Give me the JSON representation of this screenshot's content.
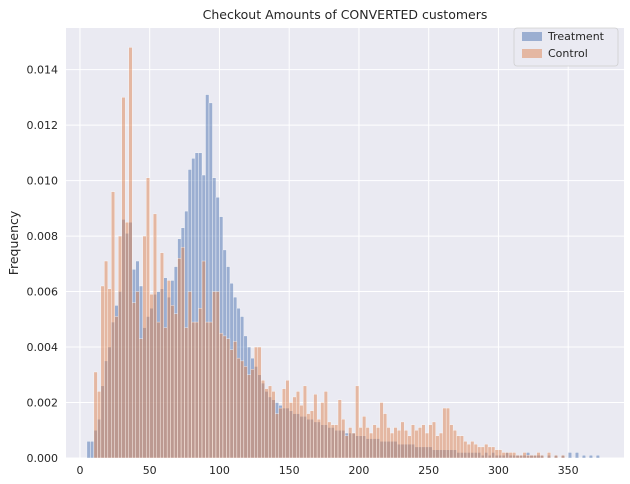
{
  "chart_data": {
    "type": "histogram",
    "title": "Checkout Amounts of CONVERTED customers",
    "xlabel": "",
    "ylabel": "Frequency",
    "xlim": [
      -10,
      390
    ],
    "ylim": [
      0,
      0.0155
    ],
    "xticks": [
      0,
      50,
      100,
      150,
      200,
      250,
      300,
      350
    ],
    "yticks": [
      0.0,
      0.002,
      0.004,
      0.006,
      0.008,
      0.01,
      0.012,
      0.014
    ],
    "ytick_labels": [
      "0.000",
      "0.002",
      "0.004",
      "0.006",
      "0.008",
      "0.010",
      "0.012",
      "0.014"
    ],
    "grid": true,
    "legend_position": "top-right",
    "bin_width": 2.5,
    "series": [
      {
        "name": "Treatment",
        "color": "#4c72b0",
        "bins": [
          [
            5,
            0.0006
          ],
          [
            7.5,
            0.0006
          ],
          [
            10,
            0.001
          ],
          [
            12.5,
            0.0014
          ],
          [
            15,
            0.0026
          ],
          [
            17.5,
            0.0035
          ],
          [
            20,
            0.004
          ],
          [
            22.5,
            0.0049
          ],
          [
            25,
            0.0055
          ],
          [
            27.5,
            0.006
          ],
          [
            30,
            0.0086
          ],
          [
            32.5,
            0.0081
          ],
          [
            35,
            0.0085
          ],
          [
            37.5,
            0.0068
          ],
          [
            40,
            0.0071
          ],
          [
            42.5,
            0.0062
          ],
          [
            45,
            0.0047
          ],
          [
            47.5,
            0.0051
          ],
          [
            50,
            0.0054
          ],
          [
            52.5,
            0.0059
          ],
          [
            55,
            0.006
          ],
          [
            57.5,
            0.0061
          ],
          [
            60,
            0.0065
          ],
          [
            62.5,
            0.0058
          ],
          [
            65,
            0.0064
          ],
          [
            67.5,
            0.0069
          ],
          [
            70,
            0.0079
          ],
          [
            72.5,
            0.0083
          ],
          [
            75,
            0.0089
          ],
          [
            77.5,
            0.0104
          ],
          [
            80,
            0.0108
          ],
          [
            82.5,
            0.011
          ],
          [
            85,
            0.011
          ],
          [
            87.5,
            0.0102
          ],
          [
            90,
            0.0131
          ],
          [
            92.5,
            0.0128
          ],
          [
            95,
            0.0101
          ],
          [
            97.5,
            0.0094
          ],
          [
            100,
            0.0087
          ],
          [
            102.5,
            0.0075
          ],
          [
            105,
            0.0069
          ],
          [
            107.5,
            0.0063
          ],
          [
            110,
            0.0058
          ],
          [
            112.5,
            0.0054
          ],
          [
            115,
            0.0051
          ],
          [
            117.5,
            0.0044
          ],
          [
            120,
            0.004
          ],
          [
            122.5,
            0.0036
          ],
          [
            125,
            0.0033
          ],
          [
            127.5,
            0.003
          ],
          [
            130,
            0.0027
          ],
          [
            132.5,
            0.0024
          ],
          [
            135,
            0.0022
          ],
          [
            137.5,
            0.0021
          ],
          [
            140,
            0.002
          ],
          [
            142.5,
            0.0019
          ],
          [
            145,
            0.0018
          ],
          [
            147.5,
            0.0018
          ],
          [
            150,
            0.0017
          ],
          [
            152.5,
            0.0016
          ],
          [
            155,
            0.0016
          ],
          [
            157.5,
            0.0015
          ],
          [
            160,
            0.0015
          ],
          [
            162.5,
            0.0014
          ],
          [
            165,
            0.0014
          ],
          [
            167.5,
            0.0013
          ],
          [
            170,
            0.0013
          ],
          [
            172.5,
            0.0012
          ],
          [
            175,
            0.0012
          ],
          [
            177.5,
            0.0011
          ],
          [
            180,
            0.0011
          ],
          [
            182.5,
            0.001
          ],
          [
            185,
            0.001
          ],
          [
            187.5,
            0.001
          ],
          [
            190,
            0.0009
          ],
          [
            192.5,
            0.0009
          ],
          [
            195,
            0.0009
          ],
          [
            197.5,
            0.0008
          ],
          [
            200,
            0.0008
          ],
          [
            202.5,
            0.0008
          ],
          [
            205,
            0.0007
          ],
          [
            207.5,
            0.0007
          ],
          [
            210,
            0.0007
          ],
          [
            212.5,
            0.0007
          ],
          [
            215,
            0.0006
          ],
          [
            217.5,
            0.0006
          ],
          [
            220,
            0.0006
          ],
          [
            222.5,
            0.0006
          ],
          [
            225,
            0.0006
          ],
          [
            227.5,
            0.0005
          ],
          [
            230,
            0.0005
          ],
          [
            232.5,
            0.0005
          ],
          [
            235,
            0.0005
          ],
          [
            237.5,
            0.0005
          ],
          [
            240,
            0.0004
          ],
          [
            242.5,
            0.0004
          ],
          [
            245,
            0.0004
          ],
          [
            247.5,
            0.0004
          ],
          [
            250,
            0.0004
          ],
          [
            252.5,
            0.0003
          ],
          [
            255,
            0.0003
          ],
          [
            257.5,
            0.0003
          ],
          [
            260,
            0.0003
          ],
          [
            262.5,
            0.0003
          ],
          [
            265,
            0.0003
          ],
          [
            267.5,
            0.0003
          ],
          [
            270,
            0.0002
          ],
          [
            272.5,
            0.0002
          ],
          [
            275,
            0.0002
          ],
          [
            277.5,
            0.0002
          ],
          [
            280,
            0.0002
          ],
          [
            282.5,
            0.0002
          ],
          [
            285,
            0.0002
          ],
          [
            287.5,
            0.0001
          ],
          [
            290,
            0.0002
          ],
          [
            292.5,
            0.0001
          ],
          [
            295,
            0.0002
          ],
          [
            297.5,
            0.0001
          ],
          [
            300,
            0.0001
          ],
          [
            302.5,
            0.0001
          ],
          [
            305,
            0.0002
          ],
          [
            307.5,
            0.0001
          ],
          [
            310,
            0.0001
          ],
          [
            312.5,
            0.0001
          ],
          [
            315,
            0.0001
          ],
          [
            317.5,
            0.0001
          ],
          [
            320,
            0.0002
          ],
          [
            322.5,
            0.0001
          ],
          [
            325,
            0.0001
          ],
          [
            327.5,
            0.0001
          ],
          [
            330,
            0.0001
          ],
          [
            335,
            0.0001
          ],
          [
            340,
            0.0001
          ],
          [
            345,
            0.0001
          ],
          [
            350,
            0.0002
          ],
          [
            355,
            0.0002
          ],
          [
            360,
            0.0001
          ],
          [
            365,
            0.0001
          ],
          [
            370,
            0.0001
          ]
        ]
      },
      {
        "name": "Control",
        "color": "#dd8452",
        "bins": [
          [
            10,
            0.0031
          ],
          [
            12.5,
            0.0024
          ],
          [
            15,
            0.0062
          ],
          [
            17.5,
            0.0071
          ],
          [
            20,
            0.0061
          ],
          [
            22.5,
            0.0096
          ],
          [
            25,
            0.0051
          ],
          [
            27.5,
            0.008
          ],
          [
            30,
            0.013
          ],
          [
            32.5,
            0.0085
          ],
          [
            35,
            0.0148
          ],
          [
            37.5,
            0.0056
          ],
          [
            40,
            0.006
          ],
          [
            42.5,
            0.0043
          ],
          [
            45,
            0.008
          ],
          [
            47.5,
            0.0101
          ],
          [
            50,
            0.0059
          ],
          [
            52.5,
            0.0088
          ],
          [
            55,
            0.0049
          ],
          [
            57.5,
            0.0074
          ],
          [
            60,
            0.0047
          ],
          [
            62.5,
            0.0064
          ],
          [
            65,
            0.0055
          ],
          [
            67.5,
            0.0052
          ],
          [
            70,
            0.0072
          ],
          [
            72.5,
            0.0076
          ],
          [
            75,
            0.0047
          ],
          [
            77.5,
            0.006
          ],
          [
            80,
            0.0049
          ],
          [
            82.5,
            0.0049
          ],
          [
            85,
            0.0054
          ],
          [
            87.5,
            0.0071
          ],
          [
            90,
            0.0049
          ],
          [
            92.5,
            0.0049
          ],
          [
            95,
            0.006
          ],
          [
            97.5,
            0.006
          ],
          [
            100,
            0.0045
          ],
          [
            102.5,
            0.0044
          ],
          [
            105,
            0.0043
          ],
          [
            107.5,
            0.0039
          ],
          [
            110,
            0.0042
          ],
          [
            112.5,
            0.0036
          ],
          [
            115,
            0.0035
          ],
          [
            117.5,
            0.0033
          ],
          [
            120,
            0.003
          ],
          [
            122.5,
            0.0032
          ],
          [
            125,
            0.004
          ],
          [
            127.5,
            0.004
          ],
          [
            130,
            0.0028
          ],
          [
            132.5,
            0.0025
          ],
          [
            135,
            0.0026
          ],
          [
            137.5,
            0.0024
          ],
          [
            140,
            0.0016
          ],
          [
            142.5,
            0.0018
          ],
          [
            145,
            0.0025
          ],
          [
            147.5,
            0.0028
          ],
          [
            150,
            0.002
          ],
          [
            152.5,
            0.0022
          ],
          [
            155,
            0.0024
          ],
          [
            157.5,
            0.0019
          ],
          [
            160,
            0.0026
          ],
          [
            162.5,
            0.0016
          ],
          [
            165,
            0.0017
          ],
          [
            167.5,
            0.0023
          ],
          [
            170,
            0.0014
          ],
          [
            172.5,
            0.002
          ],
          [
            175,
            0.0024
          ],
          [
            177.5,
            0.0013
          ],
          [
            180,
            0.0012
          ],
          [
            182.5,
            0.0012
          ],
          [
            185,
            0.0021
          ],
          [
            187.5,
            0.0014
          ],
          [
            190,
            0.0008
          ],
          [
            192.5,
            0.0011
          ],
          [
            195,
            0.0009
          ],
          [
            197.5,
            0.0026
          ],
          [
            200,
            0.0011
          ],
          [
            202.5,
            0.0015
          ],
          [
            205,
            0.0011
          ],
          [
            207.5,
            0.0009
          ],
          [
            210,
            0.0012
          ],
          [
            212.5,
            0.0011
          ],
          [
            215,
            0.002
          ],
          [
            217.5,
            0.0016
          ],
          [
            220,
            0.0011
          ],
          [
            222.5,
            0.0009
          ],
          [
            225,
            0.0011
          ],
          [
            227.5,
            0.001
          ],
          [
            230,
            0.0013
          ],
          [
            232.5,
            0.001
          ],
          [
            235,
            0.0008
          ],
          [
            237.5,
            0.0012
          ],
          [
            240,
            0.001
          ],
          [
            242.5,
            0.0011
          ],
          [
            245,
            0.0012
          ],
          [
            247.5,
            0.0009
          ],
          [
            250,
            0.0012
          ],
          [
            252.5,
            0.0013
          ],
          [
            255,
            0.0008
          ],
          [
            257.5,
            0.0009
          ],
          [
            260,
            0.0018
          ],
          [
            262.5,
            0.0018
          ],
          [
            265,
            0.0012
          ],
          [
            267.5,
            0.001
          ],
          [
            270,
            0.0008
          ],
          [
            272.5,
            0.0008
          ],
          [
            275,
            0.0006
          ],
          [
            277.5,
            0.0005
          ],
          [
            280,
            0.0006
          ],
          [
            282.5,
            0.0005
          ],
          [
            285,
            0.0004
          ],
          [
            287.5,
            0.0004
          ],
          [
            290,
            0.0005
          ],
          [
            292.5,
            0.0004
          ],
          [
            295,
            0.0004
          ],
          [
            297.5,
            0.0003
          ],
          [
            300,
            0.0003
          ],
          [
            302.5,
            0.0002
          ],
          [
            305,
            0.0002
          ],
          [
            307.5,
            0.0002
          ],
          [
            310,
            0.0002
          ],
          [
            312.5,
            0.0001
          ],
          [
            315,
            0.0001
          ],
          [
            317.5,
            0.0002
          ],
          [
            320,
            0.0001
          ],
          [
            322.5,
            0.0001
          ],
          [
            325,
            0.0001
          ],
          [
            327.5,
            0.0002
          ],
          [
            330,
            0.0001
          ],
          [
            335,
            0.0002
          ],
          [
            340,
            0.0001
          ],
          [
            345,
            0.0001
          ]
        ]
      }
    ]
  }
}
